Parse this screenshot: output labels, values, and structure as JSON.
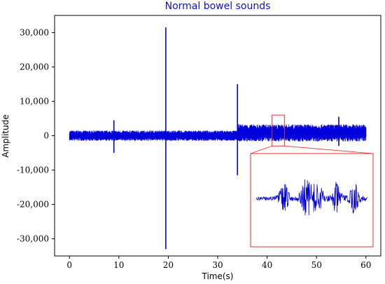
{
  "chart_data": {
    "type": "line",
    "title": "Normal bowel sounds",
    "xlabel": "Time(s)",
    "ylabel": "Amplitude",
    "xlim": [
      -3,
      63
    ],
    "ylim": [
      -35000,
      35000
    ],
    "xticks": [
      0,
      10,
      20,
      30,
      40,
      50,
      60
    ],
    "xtick_labels": [
      "0",
      "10",
      "20",
      "30",
      "40",
      "50",
      "60"
    ],
    "yticks": [
      30000,
      20000,
      10000,
      0,
      -10000,
      -20000,
      -30000
    ],
    "ytick_labels": [
      "30,000",
      "20,000",
      "10,000",
      "0",
      "-10,000",
      "-20,000",
      "-30,000"
    ],
    "grid": false,
    "series_color": "#0000dd",
    "highlight_color": "#e03030",
    "baseline_segments": [
      {
        "x_start": 0,
        "x_end": 34,
        "amplitude": 1500
      },
      {
        "x_start": 34,
        "x_end": 60,
        "amplitude": 2500
      }
    ],
    "spikes": [
      {
        "x": 9,
        "y_max": 4500,
        "y_min": -5000
      },
      {
        "x": 19.5,
        "y_max": 31500,
        "y_min": -33000
      },
      {
        "x": 34,
        "y_max": 15000,
        "y_min": -11500
      },
      {
        "x": 54.5,
        "y_max": 5500,
        "y_min": -3000
      }
    ],
    "zoom_window": {
      "x_start": 41,
      "x_end": 43.5,
      "y_min": -3000,
      "y_max": 6000
    }
  }
}
